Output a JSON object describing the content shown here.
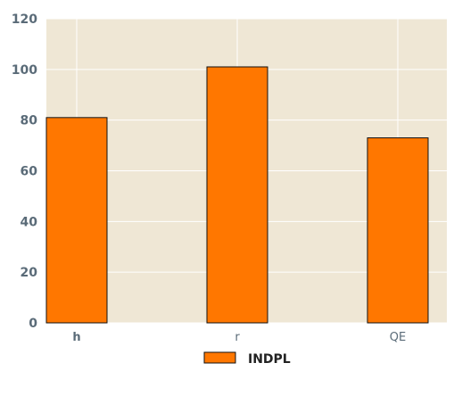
{
  "colors": {
    "plot_background": "#efe7d5",
    "grid": "#ffffff",
    "bar_fill": "#ff7700",
    "bar_stroke": "#111111",
    "tick_text": "#5a6b78",
    "legend_text": "#222222"
  },
  "chart_data": {
    "type": "bar",
    "categories": [
      "h",
      "r",
      "QE"
    ],
    "series": [
      {
        "name": "INDPL",
        "values": [
          81,
          101,
          73
        ]
      }
    ],
    "ylim": [
      0,
      120
    ],
    "yticks": [
      0,
      20,
      40,
      60,
      80,
      100,
      120
    ],
    "grid": true,
    "legend": {
      "placement": "bottom-center"
    }
  }
}
